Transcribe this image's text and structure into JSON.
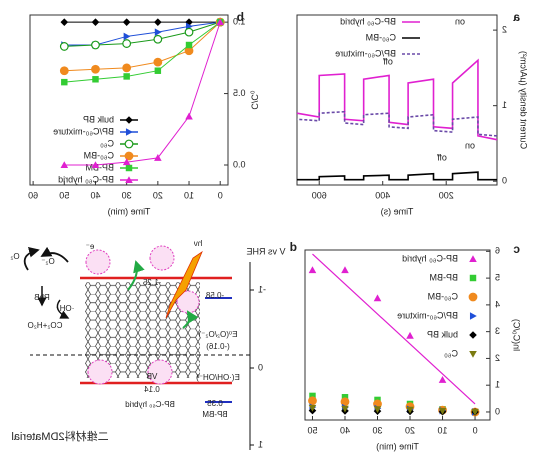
{
  "chart_data": [
    {
      "type": "line",
      "panel_label": "a",
      "xlabel": "Time (s)",
      "ylabel": "Current density (μA/cm²)",
      "x": [
        40,
        100,
        100,
        180,
        180,
        240,
        240,
        320,
        320,
        380,
        380,
        460,
        460,
        520,
        520,
        600,
        600,
        670
      ],
      "xlim": [
        40,
        670
      ],
      "xticks": [
        200,
        400,
        600
      ],
      "ylim": [
        -0.05,
        2.2
      ],
      "yticks": [
        0,
        1,
        2
      ],
      "legend": "upper right",
      "annotations": [
        "on",
        "off",
        "on",
        "off"
      ],
      "series": [
        {
          "name": "BP-C₆₀ hybrid",
          "color": "#e020d0",
          "values": [
            0.55,
            0.6,
            1.6,
            1.3,
            0.7,
            0.72,
            1.35,
            1.3,
            0.75,
            0.78,
            1.4,
            1.35,
            0.8,
            0.82,
            1.42,
            1.4,
            0.85,
            0.9
          ]
        },
        {
          "name": "C₆₀-BM",
          "color": "#000000",
          "values": [
            0.02,
            0.02,
            0.12,
            0.1,
            0.02,
            0.02,
            0.1,
            0.08,
            0.02,
            0.02,
            0.08,
            0.07,
            0.02,
            0.02,
            0.07,
            0.06,
            0.02,
            0.02
          ]
        },
        {
          "name": "BP/C₆₀-mixture",
          "color": "#6a4aa8",
          "dash": true,
          "values": [
            0.6,
            0.62,
            0.85,
            0.82,
            0.65,
            0.67,
            0.88,
            0.85,
            0.7,
            0.72,
            0.9,
            0.88,
            0.75,
            0.77,
            0.92,
            0.9,
            0.8,
            0.82
          ]
        }
      ]
    },
    {
      "type": "line",
      "panel_label": "b",
      "xlabel": "Time (min)",
      "ylabel": "C/C₀",
      "x": [
        0,
        10,
        20,
        30,
        40,
        50
      ],
      "xlim": [
        -2.5,
        61
      ],
      "xticks": [
        0,
        10,
        20,
        30,
        40,
        50,
        60
      ],
      "ylim": [
        -0.14,
        1.05
      ],
      "yticks": [
        {
          "value": 0,
          "label": "0.0"
        },
        {
          "value": 0.5,
          "label": "0.5"
        },
        {
          "value": 1,
          "label": "1.0"
        }
      ],
      "legend": "lower right",
      "series": [
        {
          "name": "bulk BP",
          "color": "#000000",
          "marker": "diamond",
          "values": [
            1.0,
            1.0,
            1.0,
            1.0,
            1.0,
            1.0
          ]
        },
        {
          "name": "BP/C₆₀-mixture",
          "color": "#1f4fd8",
          "marker": "tri-left",
          "values": [
            1.0,
            0.97,
            0.93,
            0.9,
            0.84,
            0.84
          ]
        },
        {
          "name": "C₆₀",
          "color": "#1a9a1a",
          "marker": "circle-open",
          "values": [
            1.0,
            0.93,
            0.88,
            0.85,
            0.84,
            0.83
          ]
        },
        {
          "name": "C₆₀-BM",
          "color": "#f08a1e",
          "marker": "circle",
          "values": [
            1.0,
            0.8,
            0.72,
            0.68,
            0.67,
            0.66
          ]
        },
        {
          "name": "BP-BM",
          "color": "#33cc33",
          "marker": "square",
          "values": [
            1.0,
            0.84,
            0.66,
            0.62,
            0.6,
            0.58
          ]
        },
        {
          "name": "BP-C₆₀ hybrid",
          "color": "#e020d0",
          "marker": "tri-up",
          "values": [
            1.0,
            0.34,
            0.05,
            0.02,
            0.0,
            0.0
          ]
        }
      ]
    },
    {
      "type": "scatter",
      "panel_label": "c",
      "xlabel": "Time (min)",
      "ylabel": "ln(C₀/C)",
      "x": [
        0,
        10,
        20,
        30,
        40,
        50
      ],
      "xlim": [
        -4.6,
        52.3
      ],
      "xticks": [
        0,
        10,
        20,
        30,
        40,
        50
      ],
      "ylim": [
        -0.3,
        6.05
      ],
      "yticks": [
        0,
        1,
        2,
        3,
        4,
        5,
        6
      ],
      "legend": "upper left",
      "fit_line": {
        "x": [
          0,
          50
        ],
        "values": [
          0.3,
          5.9
        ],
        "color": "#e020d0"
      },
      "series": [
        {
          "name": "BP-C₆₀ hybrid",
          "color": "#e020d0",
          "marker": "tri-up",
          "values": [
            0,
            1.2,
            2.85,
            4.25,
            5.3,
            5.3
          ]
        },
        {
          "name": "BP-BM",
          "color": "#33cc33",
          "marker": "square",
          "values": [
            0,
            0.1,
            0.3,
            0.45,
            0.55,
            0.6
          ]
        },
        {
          "name": "C₆₀-BM",
          "color": "#f08a1e",
          "marker": "circle",
          "values": [
            0,
            0.07,
            0.2,
            0.3,
            0.38,
            0.42
          ]
        },
        {
          "name": "BP/C₆₀-mixture",
          "color": "#1f4fd8",
          "marker": "tri-left",
          "values": [
            0,
            0.05,
            0.1,
            0.13,
            0.16,
            0.18
          ]
        },
        {
          "name": "bulk BP",
          "color": "#000000",
          "marker": "diamond",
          "values": [
            0,
            0.01,
            0.02,
            0.03,
            0.04,
            0.05
          ]
        },
        {
          "name": "C₆₀",
          "color": "#7a7a10",
          "marker": "tri-down",
          "values": [
            0,
            0.04,
            0.08,
            0.1,
            0.12,
            0.15
          ]
        }
      ]
    }
  ],
  "diagram": {
    "panel_label": "d",
    "axis_label": "V vs RHE",
    "ticks": [
      "-1",
      "0",
      "1"
    ],
    "labels": [
      "hν",
      "e⁻",
      "-1.25",
      "-0.58",
      "E⁰(O₂/O₂⁻)",
      "(-0.16)",
      "E(·OH/OH⁻)",
      "VB",
      "0.14",
      "0.35",
      "BP-BM",
      "BP-C₆₀ hybrid",
      "O₂",
      "O₂⁻",
      "RhB",
      "·OH",
      "CO₂+H₂O"
    ]
  },
  "watermark": "二维材料2DMaterial"
}
